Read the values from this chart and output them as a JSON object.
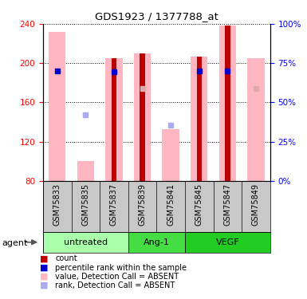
{
  "title": "GDS1923 / 1377788_at",
  "samples": [
    "GSM75833",
    "GSM75835",
    "GSM75837",
    "GSM75839",
    "GSM75841",
    "GSM75845",
    "GSM75847",
    "GSM75849"
  ],
  "group_defs": [
    {
      "label": "untreated",
      "start": 0,
      "end": 2,
      "color": "#AAFFAA"
    },
    {
      "label": "Ang-1",
      "start": 3,
      "end": 4,
      "color": "#44DD44"
    },
    {
      "label": "VEGF",
      "start": 5,
      "end": 7,
      "color": "#22CC22"
    }
  ],
  "pink_bar_values": [
    232,
    100,
    205,
    210,
    133,
    207,
    238,
    205
  ],
  "pink_bar_color": "#FFB6C1",
  "red_bar_values": [
    null,
    null,
    205,
    210,
    null,
    207,
    238,
    null
  ],
  "red_bar_color": "#BB0000",
  "light_blue_sq_values": [
    null,
    147,
    null,
    null,
    137,
    null,
    null,
    null
  ],
  "light_blue_color": "#AAAAEE",
  "dark_blue_sq_values": [
    192,
    null,
    191,
    null,
    null,
    192,
    192,
    null
  ],
  "dark_blue_color": "#0000CC",
  "pink_sq_values": [
    192,
    null,
    null,
    174,
    null,
    null,
    null,
    174
  ],
  "ymin": 80,
  "ymax": 240,
  "yticks_left": [
    80,
    120,
    160,
    200,
    240
  ],
  "yticks_right": [
    0,
    25,
    50,
    75,
    100
  ],
  "legend": [
    {
      "color": "#BB0000",
      "label": "count"
    },
    {
      "color": "#0000CC",
      "label": "percentile rank within the sample"
    },
    {
      "color": "#FFB6C1",
      "label": "value, Detection Call = ABSENT"
    },
    {
      "color": "#AAAAEE",
      "label": "rank, Detection Call = ABSENT"
    }
  ]
}
